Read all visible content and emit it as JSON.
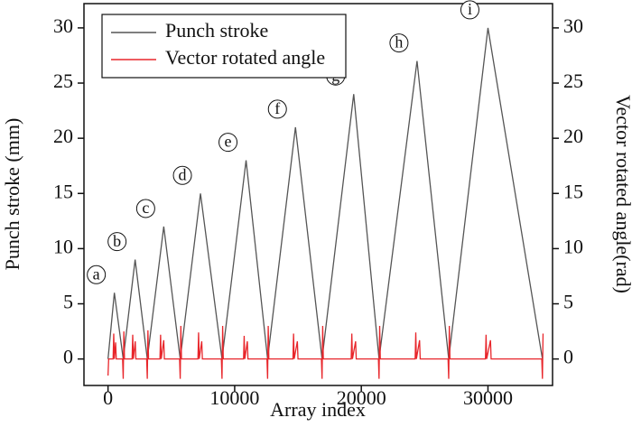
{
  "chart_data": {
    "type": "line",
    "xlabel": "Array index",
    "ylabel": "Punch stroke (mm)",
    "y2label": "Vector  rotated angle(rad)",
    "xlim": [
      -1900,
      35100
    ],
    "xticks": [
      0,
      10000,
      20000,
      30000
    ],
    "ylim": [
      -2.4,
      32.2
    ],
    "yticks": [
      0,
      5,
      10,
      15,
      20,
      25,
      30
    ],
    "y2lim": [
      -2.4,
      32.2
    ],
    "y2ticks": [
      0,
      5,
      10,
      15,
      20,
      25,
      30
    ],
    "legend": "upper left",
    "annotations": [
      "a",
      "b",
      "c",
      "d",
      "e",
      "f",
      "g",
      "h",
      "i"
    ],
    "series": [
      {
        "name": "Punch stroke",
        "color": "#555555",
        "x": [
          0,
          500,
          1200,
          2140,
          3100,
          4400,
          5700,
          7300,
          9000,
          10900,
          12600,
          14800,
          16900,
          19400,
          21400,
          24400,
          26900,
          30000,
          34300
        ],
        "values": [
          0,
          6,
          0,
          9,
          0,
          12,
          0,
          15,
          0,
          18,
          0,
          21,
          0,
          24,
          0,
          27,
          0,
          30,
          0
        ]
      },
      {
        "name": "Vector rotated angle",
        "color": "#e8262b",
        "axis": "y2",
        "x": [
          0,
          50,
          400,
          450,
          500,
          600,
          650,
          1150,
          1200,
          1250,
          1300,
          1900,
          1950,
          2000,
          2150,
          2200,
          3050,
          3100,
          3150,
          3200,
          4100,
          4150,
          4200,
          4400,
          4450,
          5650,
          5700,
          5750,
          5800,
          7100,
          7150,
          7200,
          7400,
          7450,
          8950,
          9000,
          9050,
          9100,
          10700,
          10750,
          10800,
          11000,
          11050,
          12550,
          12600,
          12650,
          12700,
          14600,
          14650,
          14700,
          14950,
          15000,
          16850,
          16900,
          16950,
          17000,
          19200,
          19250,
          19300,
          19550,
          19600,
          21350,
          21400,
          21450,
          21500,
          24250,
          24300,
          24350,
          24600,
          24650,
          26850,
          26900,
          26950,
          27000,
          29800,
          29850,
          29900,
          30200,
          30250,
          34250,
          34300,
          34350
        ],
        "values": [
          -1.5,
          0,
          0,
          2.3,
          0,
          1.5,
          0,
          0,
          -1.8,
          2.5,
          0,
          0,
          2.2,
          0,
          1.6,
          0,
          0,
          -1.8,
          2.6,
          0,
          0,
          2.2,
          0,
          1.7,
          0,
          0,
          -1.8,
          3.0,
          0,
          0,
          2.4,
          0,
          1.6,
          0,
          0,
          -1.8,
          3.0,
          0,
          0,
          2.1,
          0,
          1.6,
          0,
          0,
          -1.8,
          3.0,
          0,
          0,
          2.3,
          0,
          1.6,
          0,
          0,
          -1.8,
          3.0,
          0,
          0,
          2.3,
          0,
          1.6,
          0,
          0,
          -1.8,
          3.0,
          0,
          0,
          2.4,
          0,
          1.7,
          0,
          0,
          -1.8,
          3.0,
          0,
          0,
          2.2,
          0,
          1.7,
          0,
          0,
          -1.8,
          2.3
        ]
      }
    ]
  }
}
